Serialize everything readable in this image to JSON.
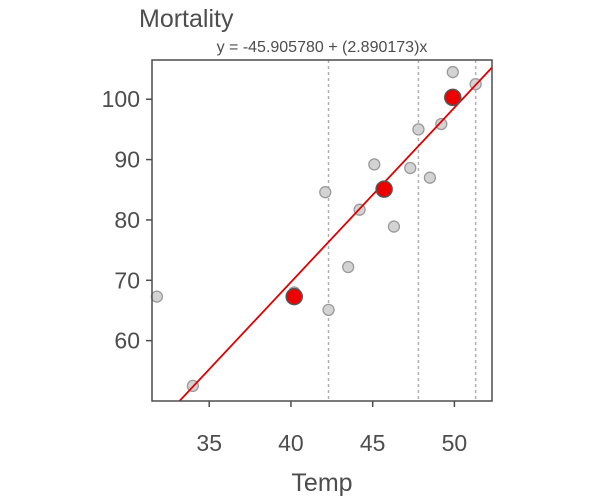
{
  "chart_data": {
    "type": "scatter",
    "ylabel": "Mortality",
    "xlabel": "Temp",
    "subtitle": "y = -45.905780 + (2.890173)x",
    "xlim": [
      31.5,
      52.3
    ],
    "ylim": [
      50.0,
      106.5
    ],
    "xticks": [
      35,
      40,
      45,
      50
    ],
    "yticks": [
      60,
      70,
      80,
      90,
      100
    ],
    "grid": false,
    "regression": {
      "intercept": -45.90578,
      "slope": 2.890173,
      "color": "#e00000"
    },
    "vlines": [
      42.3,
      47.8,
      51.3
    ],
    "points": [
      {
        "x": 31.8,
        "y": 67.3
      },
      {
        "x": 34.0,
        "y": 52.5
      },
      {
        "x": 40.2,
        "y": 68.0
      },
      {
        "x": 42.1,
        "y": 84.6
      },
      {
        "x": 42.3,
        "y": 65.1
      },
      {
        "x": 43.5,
        "y": 72.2
      },
      {
        "x": 44.2,
        "y": 81.7
      },
      {
        "x": 45.1,
        "y": 89.2
      },
      {
        "x": 46.3,
        "y": 78.9
      },
      {
        "x": 47.3,
        "y": 88.6
      },
      {
        "x": 47.8,
        "y": 95.0
      },
      {
        "x": 48.5,
        "y": 87.0
      },
      {
        "x": 49.2,
        "y": 95.9
      },
      {
        "x": 49.9,
        "y": 104.5
      },
      {
        "x": 51.3,
        "y": 102.5
      }
    ],
    "highlight_points": [
      {
        "x": 40.2,
        "y": 67.3
      },
      {
        "x": 45.7,
        "y": 85.1
      },
      {
        "x": 49.9,
        "y": 100.3
      }
    ],
    "colors": {
      "point_fill": "#d3d3d3",
      "point_stroke": "#9a9a9a",
      "highlight_fill": "#ee0000",
      "highlight_stroke": "#555555",
      "vline": "#b0b0b0",
      "axis": "#4d4d4d"
    }
  }
}
